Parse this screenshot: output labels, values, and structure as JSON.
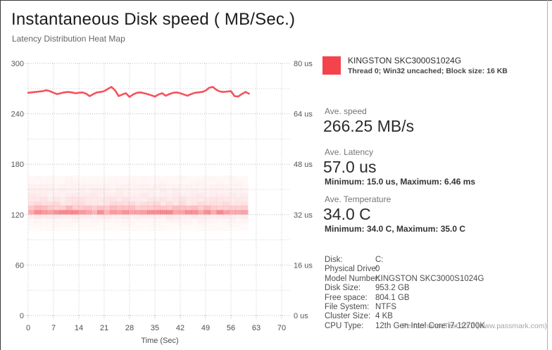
{
  "header": {
    "title": "Instantaneous Disk speed ( MB/Sec.)",
    "subtitle": "Latency Distribution Heat Map"
  },
  "legend": {
    "device": "KINGSTON SKC3000S1024G",
    "details": "Thread 0; Win32 uncached; Block size: 16 KB",
    "color": "#F4434C"
  },
  "metrics": {
    "speed": {
      "label": "Ave. speed",
      "value": "266.25 MB/s"
    },
    "latency": {
      "label": "Ave. Latency",
      "value": "57.0 us",
      "minmax": "Minimum: 15.0 us, Maximum: 6.46 ms"
    },
    "temperature": {
      "label": "Ave. Temperature",
      "value": "34.0 C",
      "minmax": "Minimum: 34.0 C, Maximum: 35.0 C"
    }
  },
  "disk_info": {
    "rows": [
      {
        "label": "Disk:",
        "value": "C:"
      },
      {
        "label": "Physical Drive:",
        "value": "0"
      },
      {
        "label": "Model Number:",
        "value": "KINGSTON SKC3000S1024G"
      },
      {
        "label": "Disk Size:",
        "value": "953.2 GB"
      },
      {
        "label": "Free space:",
        "value": "804.1 GB"
      },
      {
        "label": "File System:",
        "value": "NTFS"
      },
      {
        "label": "Cluster Size:",
        "value": "4 KB"
      },
      {
        "label": "CPU Type:",
        "value": "12th Gen Intel Core i7-12700K"
      }
    ]
  },
  "watermark": "PerformanceTest 10.2 (www.passmark.com)",
  "chart_data": {
    "type": "line",
    "title": "Instantaneous Disk speed ( MB/Sec.)",
    "subtitle": "Latency Distribution Heat Map",
    "xlabel": "Time (Sec)",
    "x_ticks": [
      0,
      7,
      14,
      21,
      28,
      35,
      42,
      49,
      56,
      63,
      70
    ],
    "xlim": [
      0,
      70
    ],
    "left_axis": {
      "unit": "MB/Sec",
      "ticks": [
        0,
        60,
        120,
        180,
        240,
        300
      ],
      "ylim": [
        0,
        300
      ],
      "minor_step": 30
    },
    "right_axis": {
      "unit": "us",
      "ticks": [
        0,
        16,
        32,
        48,
        64,
        80
      ],
      "ylim": [
        0,
        80
      ],
      "tick_suffix": " us"
    },
    "grid": "dotted",
    "legend_position": "top-right",
    "series": [
      {
        "name": "KINGSTON SKC3000S1024G",
        "unit": "MB/s",
        "color": "#F4434C",
        "x_sec": [
          0,
          1,
          2,
          3,
          4,
          5,
          6,
          7,
          8,
          9,
          10,
          11,
          12,
          13,
          14,
          15,
          16,
          17,
          18,
          19,
          20,
          21,
          22,
          23,
          24,
          25,
          26,
          27,
          28,
          29,
          30,
          31,
          32,
          33,
          34,
          35,
          36,
          37,
          38,
          39,
          40,
          41,
          42,
          43,
          44,
          45,
          46,
          47,
          48,
          49,
          50,
          51,
          52,
          53,
          54,
          55,
          56,
          57,
          58,
          59,
          60,
          61
        ],
        "values": [
          265,
          265.5,
          266,
          266.5,
          267,
          268,
          267,
          265,
          263.5,
          264.5,
          265.5,
          266,
          265.5,
          264.5,
          265,
          265.5,
          264,
          261,
          263.5,
          265.5,
          266,
          267,
          269.5,
          272,
          268,
          261,
          263,
          264.5,
          260,
          263,
          265,
          265.5,
          264.5,
          263.5,
          262,
          260.5,
          263,
          264.5,
          261.5,
          263.5,
          265,
          265.5,
          264.5,
          263,
          261.5,
          263.5,
          265,
          265.5,
          266,
          267.5,
          271,
          272,
          268.5,
          266.5,
          266,
          266.5,
          267,
          261,
          260.5,
          263.5,
          266,
          264
        ]
      }
    ],
    "heatmap": {
      "description": "latency distribution density band, red intensity = frequency",
      "base_color_rgb": [
        244,
        67,
        76
      ],
      "t_start_sec": 0,
      "t_end_sec": 60.7,
      "columns": 35,
      "row_height_us": 1.34,
      "rows": [
        {
          "lat_us": 43.6,
          "intensity": 0.045
        },
        {
          "lat_us": 42.2,
          "intensity": 0.05
        },
        {
          "lat_us": 40.9,
          "intensity": 0.06
        },
        {
          "lat_us": 39.6,
          "intensity": 0.075
        },
        {
          "lat_us": 38.2,
          "intensity": 0.09
        },
        {
          "lat_us": 36.9,
          "intensity": 0.12
        },
        {
          "lat_us": 35.5,
          "intensity": 0.16
        },
        {
          "lat_us": 34.2,
          "intensity": 0.3
        },
        {
          "lat_us": 32.8,
          "intensity": 0.52
        },
        {
          "lat_us": 31.5,
          "intensity": 0.1
        },
        {
          "lat_us": 30.2,
          "intensity": 0.05
        },
        {
          "lat_us": 28.9,
          "intensity": 0.035
        },
        {
          "lat_us": 27.5,
          "intensity": 0.025
        }
      ]
    }
  }
}
